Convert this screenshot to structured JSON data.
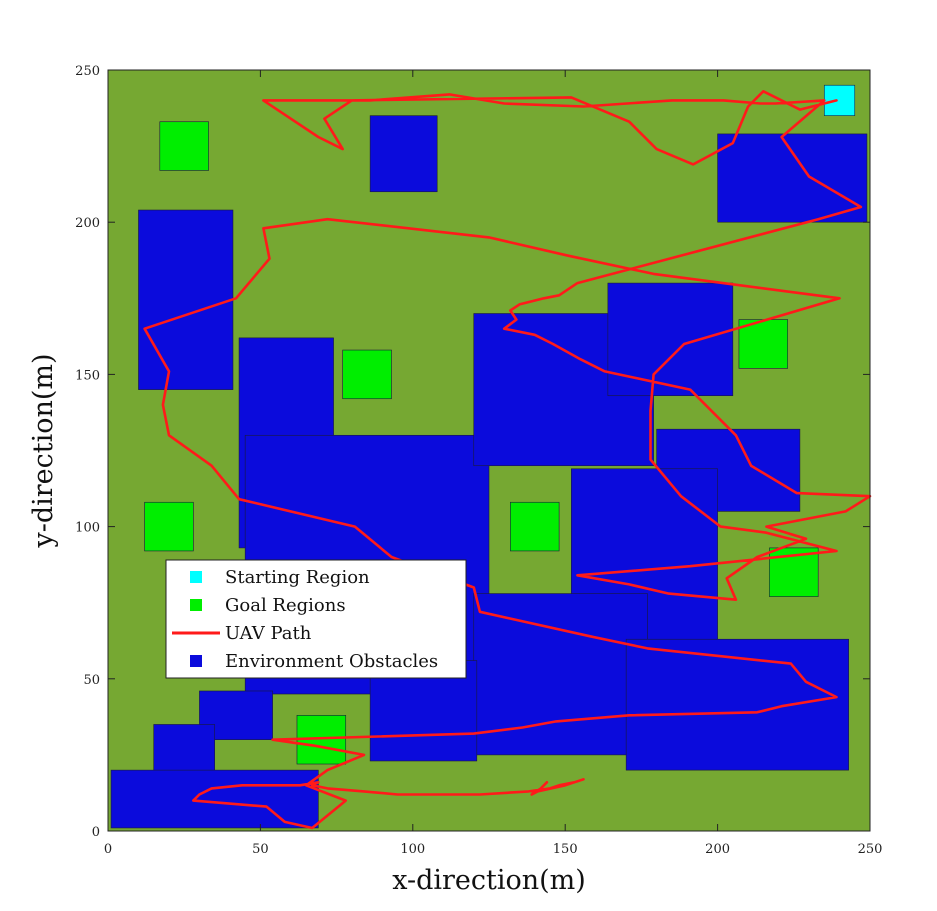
{
  "chart_data": {
    "type": "scatter",
    "title": "",
    "xlabel": "x-direction(m)",
    "ylabel": "y-direction(m)",
    "xlim": [
      0,
      250
    ],
    "ylim": [
      0,
      250
    ],
    "xticks": [
      0,
      50,
      100,
      150,
      200,
      250
    ],
    "yticks": [
      0,
      50,
      100,
      150,
      200,
      250
    ],
    "grid": false,
    "legend_position": "lower-left",
    "colors": {
      "background": "#76a832",
      "obstacle": "#0b0bdc",
      "goal": "#00ee00",
      "start": "#00ffff",
      "path": "#ff1a1a"
    },
    "legend": [
      {
        "key": "start",
        "label": "Starting Region"
      },
      {
        "key": "goal",
        "label": "Goal Regions"
      },
      {
        "key": "path",
        "label": "UAV Path"
      },
      {
        "key": "obstacle",
        "label": "Environment Obstacles"
      }
    ],
    "starting_region": {
      "x": [
        235,
        245
      ],
      "y": [
        235,
        245
      ]
    },
    "goal_regions": [
      {
        "x": [
          17,
          33
        ],
        "y": [
          217,
          233
        ]
      },
      {
        "x": [
          77,
          93
        ],
        "y": [
          142,
          158
        ]
      },
      {
        "x": [
          12,
          28
        ],
        "y": [
          92,
          108
        ]
      },
      {
        "x": [
          132,
          148
        ],
        "y": [
          92,
          108
        ]
      },
      {
        "x": [
          207,
          223
        ],
        "y": [
          152,
          168
        ]
      },
      {
        "x": [
          217,
          233
        ],
        "y": [
          77,
          93
        ]
      },
      {
        "x": [
          62,
          78
        ],
        "y": [
          22,
          38
        ]
      }
    ],
    "obstacles": [
      {
        "x": [
          10,
          41
        ],
        "y": [
          145,
          204
        ]
      },
      {
        "x": [
          43,
          74
        ],
        "y": [
          93,
          162
        ]
      },
      {
        "x": [
          45,
          125
        ],
        "y": [
          45,
          130
        ]
      },
      {
        "x": [
          86,
          108
        ],
        "y": [
          210,
          235
        ]
      },
      {
        "x": [
          120,
          179
        ],
        "y": [
          120,
          170
        ]
      },
      {
        "x": [
          164,
          205
        ],
        "y": [
          143,
          180
        ]
      },
      {
        "x": [
          200,
          249
        ],
        "y": [
          200,
          229
        ]
      },
      {
        "x": [
          180,
          227
        ],
        "y": [
          105,
          132
        ]
      },
      {
        "x": [
          152,
          200
        ],
        "y": [
          44,
          119
        ]
      },
      {
        "x": [
          120,
          177
        ],
        "y": [
          25,
          78
        ]
      },
      {
        "x": [
          86,
          121
        ],
        "y": [
          23,
          56
        ]
      },
      {
        "x": [
          170,
          243
        ],
        "y": [
          20,
          63
        ]
      },
      {
        "x": [
          30,
          54
        ],
        "y": [
          30,
          46
        ]
      },
      {
        "x": [
          15,
          35
        ],
        "y": [
          15,
          35
        ]
      },
      {
        "x": [
          1,
          69
        ],
        "y": [
          1,
          20
        ]
      }
    ],
    "path": {
      "x": [
        239,
        227,
        215,
        210,
        205,
        192,
        180,
        171,
        152,
        80,
        71,
        77,
        69,
        51,
        86,
        112,
        130,
        156,
        185,
        202,
        214,
        219,
        235,
        221,
        230,
        247,
        233,
        154,
        148,
        143,
        135,
        132,
        134,
        130,
        140,
        146,
        155,
        163,
        191,
        206,
        211,
        226,
        250,
        242,
        216,
        229,
        213,
        203,
        206,
        184,
        171,
        154,
        191,
        239,
        216,
        201,
        188,
        178,
        178,
        179,
        189,
        240,
        179,
        151,
        125,
        72,
        51,
        53,
        42,
        12,
        20,
        18,
        20,
        34,
        43,
        81,
        93,
        120,
        122,
        158,
        177,
        224,
        229,
        239,
        221,
        213,
        171,
        147,
        136,
        120,
        54,
        68,
        84,
        72,
        65,
        78,
        67,
        58,
        52,
        28,
        30,
        34,
        44,
        63,
        69,
        67,
        72,
        84,
        95,
        122,
        138,
        145,
        148,
        153,
        156,
        150,
        141,
        139,
        142,
        144,
        143
      ],
      "y": [
        240,
        237,
        243,
        238,
        226,
        219,
        224,
        233,
        241,
        240,
        234,
        224,
        228,
        240,
        240,
        242,
        239,
        238,
        240,
        240,
        239,
        239,
        240,
        228,
        215,
        205,
        201,
        180,
        176,
        175,
        173,
        171,
        168,
        165,
        163,
        160,
        155,
        151,
        145,
        130,
        120,
        111,
        110,
        105,
        100,
        96,
        90,
        83,
        76,
        78,
        81,
        84,
        87,
        92,
        98,
        100,
        110,
        122,
        138,
        150,
        160,
        175,
        183,
        189,
        195,
        201,
        198,
        188,
        175,
        165,
        151,
        140,
        130,
        120,
        109,
        100,
        90,
        80,
        72,
        64,
        60,
        55,
        49,
        44,
        41,
        39,
        38,
        36,
        34,
        32,
        30,
        28,
        25,
        20,
        15,
        10,
        1,
        3,
        8,
        10,
        12,
        14,
        15,
        15,
        16,
        15,
        14,
        13,
        12,
        12,
        13,
        14,
        15,
        16,
        17,
        15,
        13,
        12,
        14,
        16,
        15
      ]
    }
  }
}
